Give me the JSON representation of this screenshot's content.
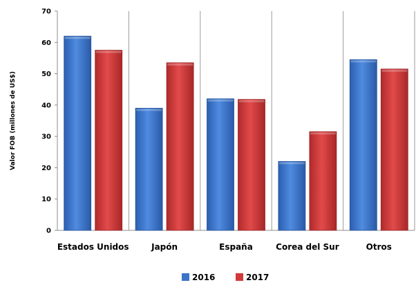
{
  "chart_data": {
    "type": "bar",
    "categories": [
      "Estados Unidos",
      "Japón",
      "España",
      "Corea del Sur",
      "Otros"
    ],
    "series": [
      {
        "name": "2016",
        "values": [
          62,
          39,
          42,
          22,
          54.5
        ],
        "color": "#3b74c9"
      },
      {
        "name": "2017",
        "values": [
          57.5,
          53.5,
          41.8,
          31.5,
          51.5
        ],
        "color": "#d2393a"
      }
    ],
    "xlabel": "",
    "ylabel": "Valor FOB (millones de US$)",
    "ylim": [
      0,
      70
    ],
    "yticks": [
      0,
      10,
      20,
      30,
      40,
      50,
      60,
      70
    ],
    "grid": "vertical separators",
    "legend_position": "bottom"
  }
}
